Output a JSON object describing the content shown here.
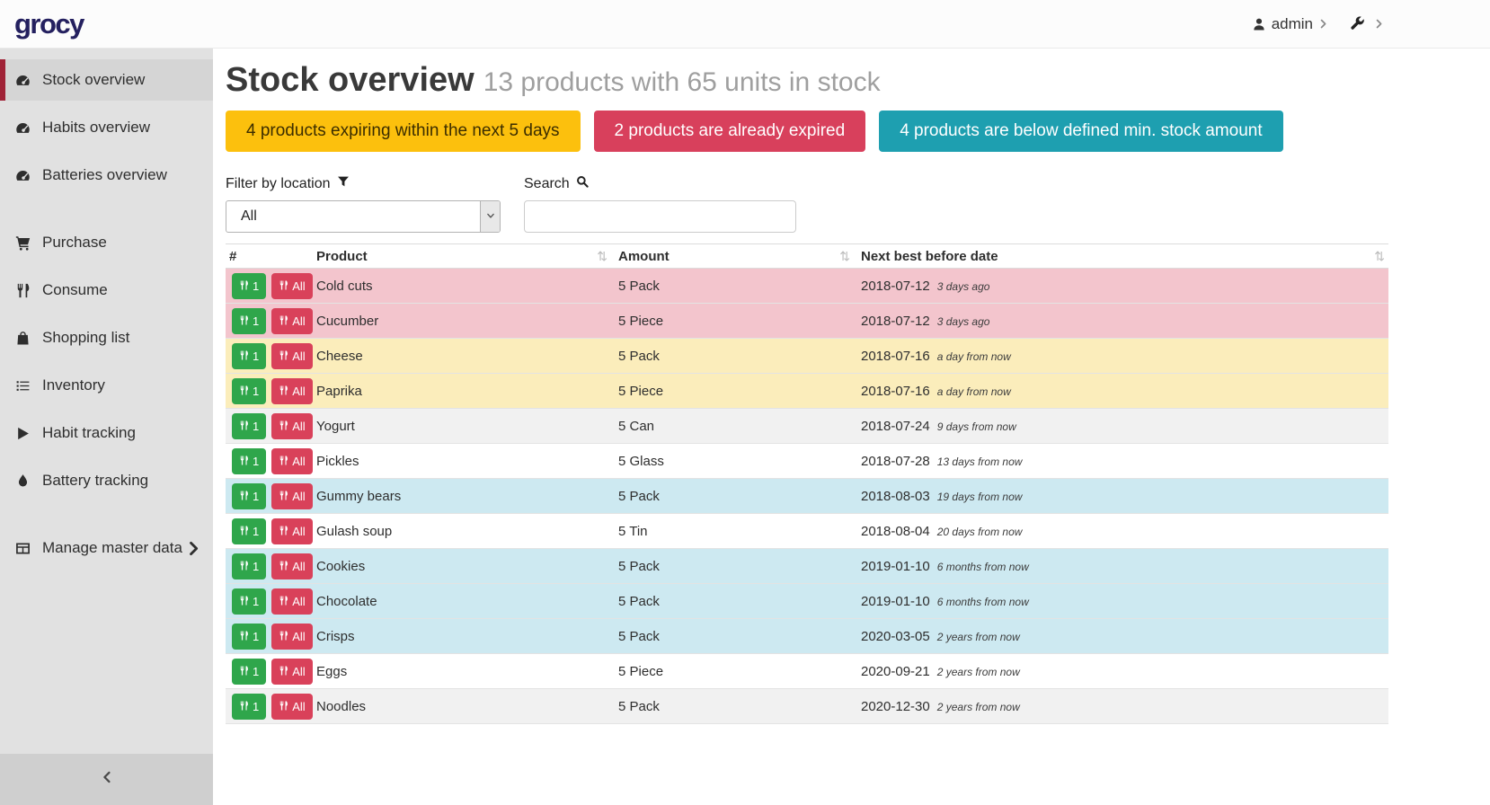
{
  "navbar": {
    "logo": "grocy",
    "user": "admin"
  },
  "colors": {
    "brand": "#24205f",
    "active_accent": "#a02337"
  },
  "sidebar": {
    "items": [
      {
        "label": "Stock overview",
        "icon": "gauge",
        "active": true
      },
      {
        "label": "Habits overview",
        "icon": "gauge"
      },
      {
        "label": "Batteries overview",
        "icon": "gauge",
        "gap_after": true
      },
      {
        "label": "Purchase",
        "icon": "cart"
      },
      {
        "label": "Consume",
        "icon": "utensils"
      },
      {
        "label": "Shopping list",
        "icon": "bag"
      },
      {
        "label": "Inventory",
        "icon": "list"
      },
      {
        "label": "Habit tracking",
        "icon": "play"
      },
      {
        "label": "Battery tracking",
        "icon": "droplet",
        "gap_after": true
      },
      {
        "label": "Manage master data",
        "icon": "table",
        "has_chevron": true
      }
    ]
  },
  "page": {
    "title": "Stock overview",
    "subtitle": "13 products with 65 units in stock"
  },
  "alerts": [
    {
      "name": "expiring-soon-button",
      "label": "4 products expiring within the next 5 days",
      "bg": "#fcc00d",
      "fg": "#3b2d00"
    },
    {
      "name": "already-expired-button",
      "label": "2 products are already expired",
      "bg": "#d8405c",
      "fg": "#ffffff"
    },
    {
      "name": "below-min-stock-button",
      "label": "4 products are below defined min. stock amount",
      "bg": "#1e9fb0",
      "fg": "#ffffff"
    }
  ],
  "filters": {
    "location_label": "Filter by location",
    "location_value": "All",
    "search_label": "Search",
    "search_value": "",
    "search_placeholder": ""
  },
  "icons": {
    "sort": "⇅"
  },
  "table": {
    "columns": [
      {
        "label": "#",
        "sortable": false
      },
      {
        "label": "Product",
        "sortable": true
      },
      {
        "label": "Amount",
        "sortable": true
      },
      {
        "label": "Next best before date",
        "sortable": true
      }
    ],
    "row_buttons": {
      "one": "1",
      "all": "All"
    },
    "status_colors": {
      "expired": "#f3c5cd",
      "due-soon": "#fbedbb",
      "below-min": "#cde9f1",
      "stripe": "#f1f1f1",
      "plain": "#ffffff"
    },
    "rows": [
      {
        "product": "Cold cuts",
        "amount": "5 Pack",
        "date": "2018-07-12",
        "relative": "3 days ago",
        "status": "expired"
      },
      {
        "product": "Cucumber",
        "amount": "5 Piece",
        "date": "2018-07-12",
        "relative": "3 days ago",
        "status": "expired"
      },
      {
        "product": "Cheese",
        "amount": "5 Pack",
        "date": "2018-07-16",
        "relative": "a day from now",
        "status": "due-soon"
      },
      {
        "product": "Paprika",
        "amount": "5 Piece",
        "date": "2018-07-16",
        "relative": "a day from now",
        "status": "due-soon"
      },
      {
        "product": "Yogurt",
        "amount": "5 Can",
        "date": "2018-07-24",
        "relative": "9 days from now",
        "status": "stripe"
      },
      {
        "product": "Pickles",
        "amount": "5 Glass",
        "date": "2018-07-28",
        "relative": "13 days from now",
        "status": "plain"
      },
      {
        "product": "Gummy bears",
        "amount": "5 Pack",
        "date": "2018-08-03",
        "relative": "19 days from now",
        "status": "below-min"
      },
      {
        "product": "Gulash soup",
        "amount": "5 Tin",
        "date": "2018-08-04",
        "relative": "20 days from now",
        "status": "plain"
      },
      {
        "product": "Cookies",
        "amount": "5 Pack",
        "date": "2019-01-10",
        "relative": "6 months from now",
        "status": "below-min"
      },
      {
        "product": "Chocolate",
        "amount": "5 Pack",
        "date": "2019-01-10",
        "relative": "6 months from now",
        "status": "below-min"
      },
      {
        "product": "Crisps",
        "amount": "5 Pack",
        "date": "2020-03-05",
        "relative": "2 years from now",
        "status": "below-min"
      },
      {
        "product": "Eggs",
        "amount": "5 Piece",
        "date": "2020-09-21",
        "relative": "2 years from now",
        "status": "plain"
      },
      {
        "product": "Noodles",
        "amount": "5 Pack",
        "date": "2020-12-30",
        "relative": "2 years from now",
        "status": "stripe"
      }
    ]
  }
}
